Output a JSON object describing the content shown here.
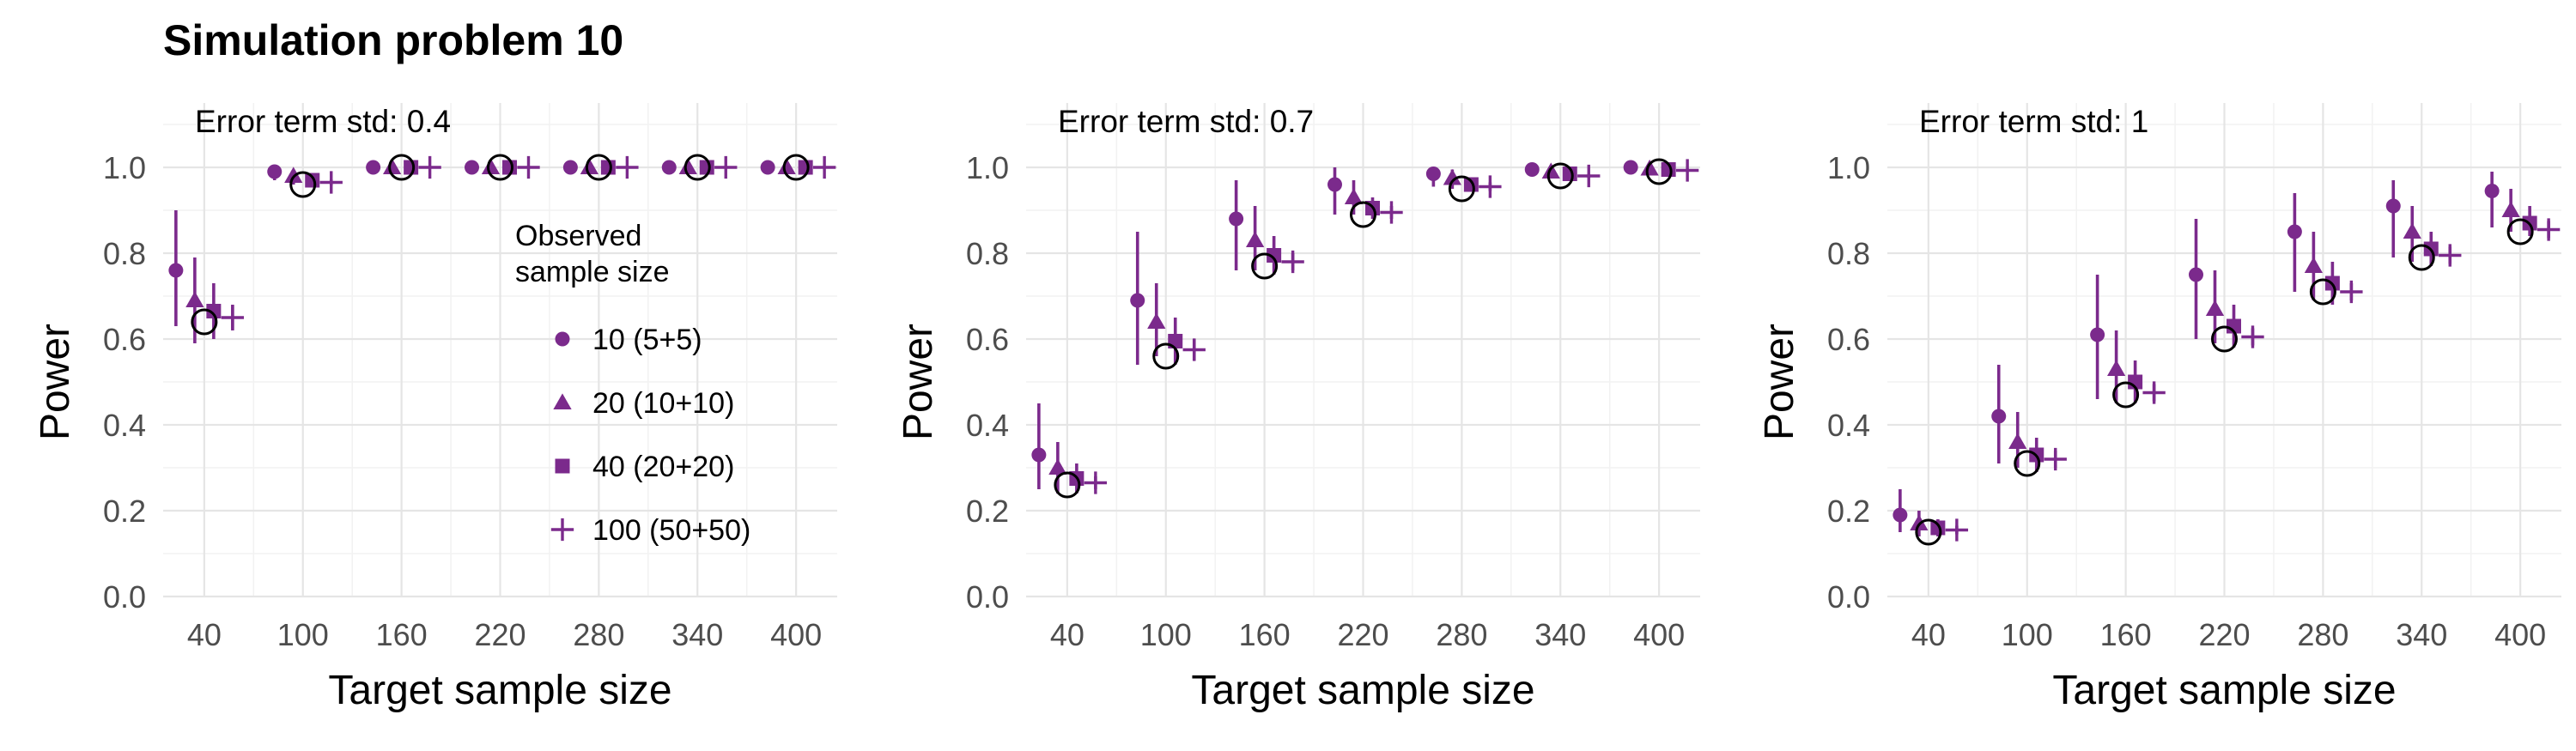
{
  "figure": {
    "title": "Simulation problem 10"
  },
  "colors": {
    "series": "#7B2A8C",
    "theory": "#000000",
    "grid": "#E5E5E5",
    "tick_text": "#4D4D4D"
  },
  "legend": {
    "title_line1": "Observed",
    "title_line2": "sample size",
    "placement": "inside first panel, right",
    "entries": [
      {
        "label": "10 (5+5)",
        "shape": "circle"
      },
      {
        "label": "20 (10+10)",
        "shape": "triangle"
      },
      {
        "label": "40 (20+20)",
        "shape": "square"
      },
      {
        "label": "100 (50+50)",
        "shape": "plus"
      }
    ]
  },
  "chart_data": [
    {
      "type": "scatter",
      "subtitle": "Error term std: 0.4",
      "xlabel": "Target sample size",
      "ylabel": "Power",
      "x": [
        40,
        100,
        160,
        220,
        280,
        340,
        400
      ],
      "xticks": [
        "40",
        "100",
        "160",
        "220",
        "280",
        "340",
        "400"
      ],
      "yticks": [
        "0.0",
        "0.2",
        "0.4",
        "0.6",
        "0.8",
        "1.0"
      ],
      "ylim": [
        0,
        1.15
      ],
      "grid": true,
      "theoretical": [
        0.64,
        0.96,
        1.0,
        1.0,
        1.0,
        1.0,
        1.0
      ],
      "series": [
        {
          "name": "10 (5+5)",
          "values": [
            0.76,
            0.99,
            1.0,
            1.0,
            1.0,
            1.0,
            1.0
          ],
          "lower": [
            0.63,
            0.97,
            0.995,
            0.995,
            0.995,
            0.995,
            0.995
          ],
          "upper": [
            0.9,
            1.0,
            1.0,
            1.0,
            1.0,
            1.0,
            1.0
          ]
        },
        {
          "name": "20 (10+10)",
          "values": [
            0.69,
            0.98,
            1.0,
            1.0,
            1.0,
            1.0,
            1.0
          ],
          "lower": [
            0.59,
            0.96,
            0.995,
            0.995,
            0.995,
            0.995,
            0.995
          ],
          "upper": [
            0.79,
            0.99,
            1.0,
            1.0,
            1.0,
            1.0,
            1.0
          ]
        },
        {
          "name": "40 (20+20)",
          "values": [
            0.665,
            0.97,
            1.0,
            1.0,
            1.0,
            1.0,
            1.0
          ],
          "lower": [
            0.6,
            0.955,
            0.995,
            0.995,
            0.995,
            0.995,
            0.995
          ],
          "upper": [
            0.73,
            0.985,
            1.0,
            1.0,
            1.0,
            1.0,
            1.0
          ]
        },
        {
          "name": "100 (50+50)",
          "values": [
            0.65,
            0.965,
            1.0,
            1.0,
            1.0,
            1.0,
            1.0
          ],
          "lower": [
            0.62,
            0.958,
            0.998,
            0.998,
            0.998,
            0.998,
            0.998
          ],
          "upper": [
            0.68,
            0.972,
            1.0,
            1.0,
            1.0,
            1.0,
            1.0
          ]
        }
      ]
    },
    {
      "type": "scatter",
      "subtitle": "Error term std: 0.7",
      "xlabel": "Target sample size",
      "ylabel": "Power",
      "x": [
        40,
        100,
        160,
        220,
        280,
        340,
        400
      ],
      "xticks": [
        "40",
        "100",
        "160",
        "220",
        "280",
        "340",
        "400"
      ],
      "yticks": [
        "0.0",
        "0.2",
        "0.4",
        "0.6",
        "0.8",
        "1.0"
      ],
      "ylim": [
        0,
        1.15
      ],
      "grid": true,
      "theoretical": [
        0.26,
        0.56,
        0.77,
        0.89,
        0.95,
        0.98,
        0.99
      ],
      "series": [
        {
          "name": "10 (5+5)",
          "values": [
            0.33,
            0.69,
            0.88,
            0.96,
            0.985,
            0.995,
            1.0
          ],
          "lower": [
            0.25,
            0.54,
            0.76,
            0.89,
            0.955,
            0.985,
            0.995
          ],
          "upper": [
            0.45,
            0.85,
            0.97,
            1.0,
            1.0,
            1.0,
            1.0
          ]
        },
        {
          "name": "20 (10+10)",
          "values": [
            0.3,
            0.64,
            0.83,
            0.93,
            0.975,
            0.99,
            0.997
          ],
          "lower": [
            0.24,
            0.56,
            0.76,
            0.89,
            0.95,
            0.975,
            0.99
          ],
          "upper": [
            0.36,
            0.73,
            0.91,
            0.97,
            0.995,
            1.0,
            1.0
          ]
        },
        {
          "name": "40 (20+20)",
          "values": [
            0.275,
            0.595,
            0.795,
            0.905,
            0.96,
            0.985,
            0.995
          ],
          "lower": [
            0.24,
            0.54,
            0.75,
            0.88,
            0.945,
            0.975,
            0.99
          ],
          "upper": [
            0.31,
            0.65,
            0.84,
            0.93,
            0.975,
            0.995,
            1.0
          ]
        },
        {
          "name": "100 (50+50)",
          "values": [
            0.265,
            0.575,
            0.78,
            0.895,
            0.955,
            0.98,
            0.993
          ],
          "lower": [
            0.25,
            0.55,
            0.76,
            0.88,
            0.945,
            0.975,
            0.99
          ],
          "upper": [
            0.28,
            0.6,
            0.8,
            0.91,
            0.965,
            0.985,
            0.997
          ]
        }
      ]
    },
    {
      "type": "scatter",
      "subtitle": "Error term std: 1",
      "xlabel": "Target sample size",
      "ylabel": "Power",
      "x": [
        40,
        100,
        160,
        220,
        280,
        340,
        400
      ],
      "xticks": [
        "40",
        "100",
        "160",
        "220",
        "280",
        "340",
        "400"
      ],
      "yticks": [
        "0.0",
        "0.2",
        "0.4",
        "0.6",
        "0.8",
        "1.0"
      ],
      "ylim": [
        0,
        1.15
      ],
      "grid": true,
      "theoretical": [
        0.15,
        0.31,
        0.47,
        0.6,
        0.71,
        0.79,
        0.85
      ],
      "series": [
        {
          "name": "10 (5+5)",
          "values": [
            0.19,
            0.42,
            0.61,
            0.75,
            0.85,
            0.91,
            0.945
          ],
          "lower": [
            0.15,
            0.31,
            0.46,
            0.6,
            0.71,
            0.79,
            0.86
          ],
          "upper": [
            0.25,
            0.54,
            0.75,
            0.88,
            0.94,
            0.97,
            0.99
          ]
        },
        {
          "name": "20 (10+10)",
          "values": [
            0.17,
            0.36,
            0.53,
            0.67,
            0.77,
            0.85,
            0.9
          ],
          "lower": [
            0.14,
            0.3,
            0.45,
            0.59,
            0.69,
            0.78,
            0.85
          ],
          "upper": [
            0.2,
            0.43,
            0.62,
            0.76,
            0.85,
            0.91,
            0.95
          ]
        },
        {
          "name": "40 (20+20)",
          "values": [
            0.16,
            0.33,
            0.5,
            0.63,
            0.73,
            0.81,
            0.87
          ],
          "lower": [
            0.14,
            0.29,
            0.45,
            0.58,
            0.68,
            0.77,
            0.84
          ],
          "upper": [
            0.18,
            0.37,
            0.55,
            0.68,
            0.78,
            0.85,
            0.91
          ]
        },
        {
          "name": "100 (50+50)",
          "values": [
            0.155,
            0.32,
            0.475,
            0.605,
            0.71,
            0.795,
            0.855
          ],
          "lower": [
            0.145,
            0.3,
            0.455,
            0.585,
            0.69,
            0.775,
            0.835
          ],
          "upper": [
            0.165,
            0.34,
            0.495,
            0.625,
            0.73,
            0.815,
            0.875
          ]
        }
      ]
    }
  ]
}
